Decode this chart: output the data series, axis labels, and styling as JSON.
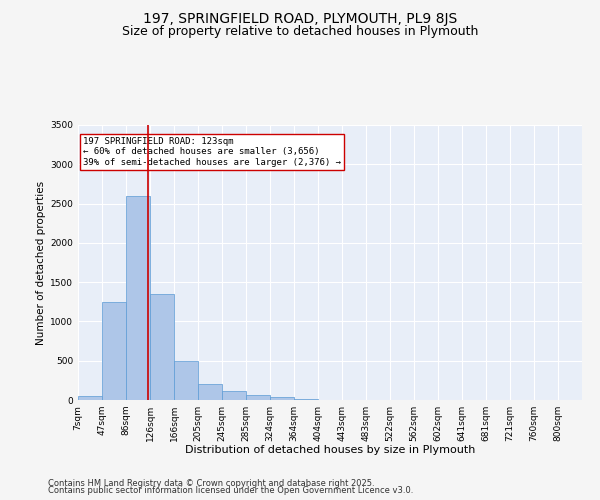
{
  "title": "197, SPRINGFIELD ROAD, PLYMOUTH, PL9 8JS",
  "subtitle": "Size of property relative to detached houses in Plymouth",
  "xlabel": "Distribution of detached houses by size in Plymouth",
  "ylabel": "Number of detached properties",
  "bin_labels": [
    "7sqm",
    "47sqm",
    "86sqm",
    "126sqm",
    "166sqm",
    "205sqm",
    "245sqm",
    "285sqm",
    "324sqm",
    "364sqm",
    "404sqm",
    "443sqm",
    "483sqm",
    "522sqm",
    "562sqm",
    "602sqm",
    "641sqm",
    "681sqm",
    "721sqm",
    "760sqm",
    "800sqm"
  ],
  "bin_edges": [
    7,
    47,
    86,
    126,
    166,
    205,
    245,
    285,
    324,
    364,
    404,
    443,
    483,
    522,
    562,
    602,
    641,
    681,
    721,
    760,
    800
  ],
  "bar_values": [
    50,
    1250,
    2600,
    1350,
    500,
    200,
    120,
    60,
    40,
    15,
    5,
    2,
    1,
    0,
    0,
    0,
    0,
    0,
    0,
    0
  ],
  "bar_color": "#aec6e8",
  "bar_edge_color": "#5b9bd5",
  "vline_x": 123,
  "vline_color": "#cc0000",
  "annotation_text": "197 SPRINGFIELD ROAD: 123sqm\n← 60% of detached houses are smaller (3,656)\n39% of semi-detached houses are larger (2,376) →",
  "annotation_box_color": "#ffffff",
  "annotation_box_edge_color": "#cc0000",
  "ylim": [
    0,
    3500
  ],
  "yticks": [
    0,
    500,
    1000,
    1500,
    2000,
    2500,
    3000,
    3500
  ],
  "background_color": "#e8eef8",
  "grid_color": "#ffffff",
  "fig_background_color": "#f5f5f5",
  "footer1": "Contains HM Land Registry data © Crown copyright and database right 2025.",
  "footer2": "Contains public sector information licensed under the Open Government Licence v3.0.",
  "title_fontsize": 10,
  "subtitle_fontsize": 9,
  "xlabel_fontsize": 8,
  "ylabel_fontsize": 7.5,
  "tick_fontsize": 6.5,
  "annotation_fontsize": 6.5,
  "footer_fontsize": 6
}
